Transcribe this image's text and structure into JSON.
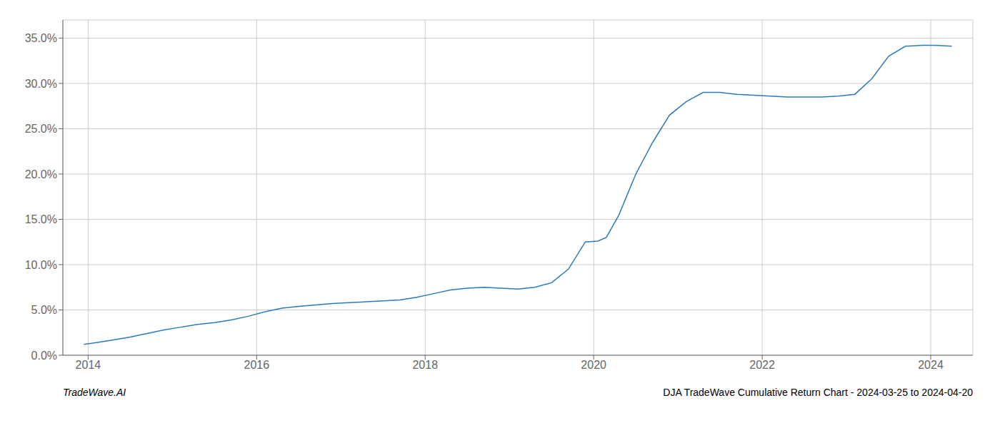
{
  "chart_data": {
    "type": "line",
    "title": "DJA TradeWave Cumulative Return Chart - 2024-03-25 to 2024-04-20",
    "annotations": [
      "TradeWave.AI"
    ],
    "color": "#2b7bba",
    "grid": true,
    "x": [
      2013.95,
      2014.1,
      2014.3,
      2014.5,
      2014.7,
      2014.9,
      2015.1,
      2015.3,
      2015.5,
      2015.7,
      2015.9,
      2016.1,
      2016.3,
      2016.5,
      2016.7,
      2016.9,
      2017.1,
      2017.3,
      2017.5,
      2017.7,
      2017.9,
      2018.1,
      2018.3,
      2018.5,
      2018.7,
      2018.9,
      2019.1,
      2019.3,
      2019.5,
      2019.7,
      2019.9,
      2020.05,
      2020.15,
      2020.3,
      2020.5,
      2020.7,
      2020.9,
      2021.1,
      2021.3,
      2021.5,
      2021.7,
      2021.9,
      2022.1,
      2022.3,
      2022.5,
      2022.7,
      2022.9,
      2023.1,
      2023.3,
      2023.5,
      2023.7,
      2023.9,
      2024.05,
      2024.25
    ],
    "values": [
      1.2,
      1.4,
      1.7,
      2.0,
      2.4,
      2.8,
      3.1,
      3.4,
      3.6,
      3.9,
      4.3,
      4.8,
      5.2,
      5.4,
      5.55,
      5.7,
      5.8,
      5.9,
      6.0,
      6.1,
      6.4,
      6.8,
      7.2,
      7.4,
      7.5,
      7.4,
      7.3,
      7.5,
      8.0,
      9.5,
      12.5,
      12.6,
      13.0,
      15.5,
      20.0,
      23.5,
      26.5,
      28.0,
      29.0,
      29.0,
      28.8,
      28.7,
      28.6,
      28.5,
      28.5,
      28.5,
      28.6,
      28.8,
      30.5,
      33.0,
      34.1,
      34.2,
      34.2,
      34.1
    ],
    "xlim": [
      2013.7,
      2024.5
    ],
    "xticks": [
      2014,
      2016,
      2018,
      2020,
      2022,
      2024
    ],
    "ylim": [
      0,
      37
    ],
    "yticks": [
      {
        "value": 0.0,
        "label": "0.0%"
      },
      {
        "value": 5.0,
        "label": "5.0%"
      },
      {
        "value": 10.0,
        "label": "10.0%"
      },
      {
        "value": 15.0,
        "label": "15.0%"
      },
      {
        "value": 20.0,
        "label": "20.0%"
      },
      {
        "value": 25.0,
        "label": "25.0%"
      },
      {
        "value": 30.0,
        "label": "30.0%"
      },
      {
        "value": 35.0,
        "label": "35.0%"
      }
    ]
  }
}
